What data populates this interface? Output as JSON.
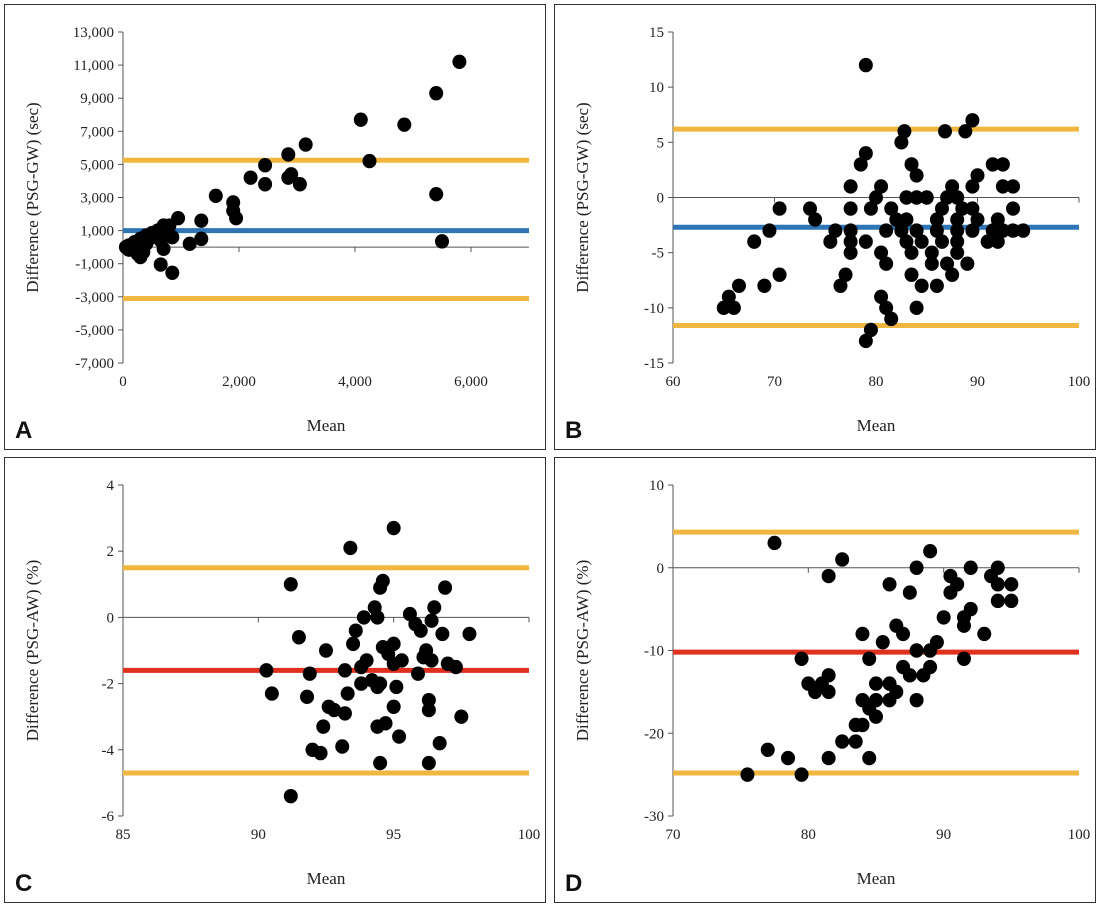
{
  "colors": {
    "limit_line": "#f0b63f",
    "mean_line_blue": "#2e75b6",
    "mean_line_red": "#e0301e",
    "point": "#000000"
  },
  "chart_data": [
    {
      "id": "A",
      "type": "scatter",
      "panel_label": "A",
      "xlabel": "Mean",
      "ylabel": "Difference (PSG-GW) (sec)",
      "xlim": [
        0,
        7000
      ],
      "ylim": [
        -7000,
        13000
      ],
      "xticks": [
        0,
        2000,
        4000,
        6000
      ],
      "xtick_labels": [
        "0",
        "2,000",
        "4,000",
        "6,000"
      ],
      "yticks": [
        -7000,
        -5000,
        -3000,
        -1000,
        1000,
        3000,
        5000,
        7000,
        9000,
        11000,
        13000
      ],
      "ytick_labels": [
        "-7,000",
        "-5,000",
        "-3,000",
        "-1,000",
        "1,000",
        "3,000",
        "5,000",
        "7,000",
        "9,000",
        "11,000",
        "13,000"
      ],
      "hlines": [
        {
          "name": "mean",
          "y": 1000,
          "color": "#2e75b6"
        },
        {
          "name": "upper_loa",
          "y": 5250,
          "color": "#f0b63f"
        },
        {
          "name": "lower_loa",
          "y": -3100,
          "color": "#f0b63f"
        }
      ],
      "points": [
        [
          5800,
          11200
        ],
        [
          5400,
          9300
        ],
        [
          4100,
          7700
        ],
        [
          4850,
          7400
        ],
        [
          3150,
          6200
        ],
        [
          2850,
          5600
        ],
        [
          4250,
          5200
        ],
        [
          2450,
          4950
        ],
        [
          2900,
          4400
        ],
        [
          2200,
          4200
        ],
        [
          2850,
          4200
        ],
        [
          3050,
          3800
        ],
        [
          2450,
          3800
        ],
        [
          1600,
          3100
        ],
        [
          5400,
          3200
        ],
        [
          1900,
          2700
        ],
        [
          1900,
          2200
        ],
        [
          1950,
          1750
        ],
        [
          1350,
          1600
        ],
        [
          950,
          1750
        ],
        [
          800,
          1300
        ],
        [
          700,
          1300
        ],
        [
          600,
          1000
        ],
        [
          750,
          800
        ],
        [
          500,
          850
        ],
        [
          400,
          700
        ],
        [
          300,
          500
        ],
        [
          200,
          300
        ],
        [
          100,
          100
        ],
        [
          50,
          0
        ],
        [
          150,
          -100
        ],
        [
          250,
          -200
        ],
        [
          350,
          -300
        ],
        [
          400,
          200
        ],
        [
          450,
          500
        ],
        [
          550,
          700
        ],
        [
          650,
          400
        ],
        [
          850,
          600
        ],
        [
          700,
          -100
        ],
        [
          1150,
          200
        ],
        [
          1350,
          500
        ],
        [
          5500,
          350
        ],
        [
          250,
          -400
        ],
        [
          300,
          -600
        ],
        [
          650,
          -1050
        ],
        [
          850,
          -1550
        ],
        [
          100,
          -150
        ],
        [
          200,
          100
        ]
      ]
    },
    {
      "id": "B",
      "type": "scatter",
      "panel_label": "B",
      "xlabel": "Mean",
      "ylabel": "Difference (PSG-GW) (sec)",
      "xlim": [
        60,
        100
      ],
      "ylim": [
        -15,
        15
      ],
      "xticks": [
        60,
        70,
        80,
        90,
        100
      ],
      "xtick_labels": [
        "60",
        "70",
        "80",
        "90",
        "100"
      ],
      "yticks": [
        -15,
        -10,
        -5,
        0,
        5,
        10,
        15
      ],
      "ytick_labels": [
        "-15",
        "-10",
        "-5",
        "0",
        "5",
        "10",
        "15"
      ],
      "hlines": [
        {
          "name": "mean",
          "y": -2.7,
          "color": "#2e75b6"
        },
        {
          "name": "upper_loa",
          "y": 6.2,
          "color": "#f0b63f"
        },
        {
          "name": "lower_loa",
          "y": -11.6,
          "color": "#f0b63f"
        }
      ],
      "points": [
        [
          79,
          12
        ],
        [
          89.5,
          7
        ],
        [
          82.8,
          6
        ],
        [
          86.8,
          6
        ],
        [
          88.8,
          6
        ],
        [
          82.5,
          5
        ],
        [
          79,
          4
        ],
        [
          83.5,
          3
        ],
        [
          78.5,
          3
        ],
        [
          91.5,
          3
        ],
        [
          92.5,
          3
        ],
        [
          84,
          2
        ],
        [
          90,
          2
        ],
        [
          77.5,
          1
        ],
        [
          80.5,
          1
        ],
        [
          87.5,
          1
        ],
        [
          89.5,
          1
        ],
        [
          92.5,
          1
        ],
        [
          93.5,
          1
        ],
        [
          80,
          0
        ],
        [
          83,
          0
        ],
        [
          84,
          0
        ],
        [
          85,
          0
        ],
        [
          87,
          0
        ],
        [
          88,
          0
        ],
        [
          70.5,
          -1
        ],
        [
          73.5,
          -1
        ],
        [
          77.5,
          -1
        ],
        [
          79.5,
          -1
        ],
        [
          81.5,
          -1
        ],
        [
          86.5,
          -1
        ],
        [
          88.5,
          -1
        ],
        [
          89.5,
          -1
        ],
        [
          93.5,
          -1
        ],
        [
          74,
          -2
        ],
        [
          82,
          -2
        ],
        [
          83,
          -2
        ],
        [
          86,
          -2
        ],
        [
          88,
          -2
        ],
        [
          90,
          -2
        ],
        [
          92,
          -2
        ],
        [
          69.5,
          -3
        ],
        [
          76,
          -3
        ],
        [
          77.5,
          -3
        ],
        [
          81,
          -3
        ],
        [
          82.5,
          -3
        ],
        [
          84,
          -3
        ],
        [
          86,
          -3
        ],
        [
          88,
          -3
        ],
        [
          89.5,
          -3
        ],
        [
          91.5,
          -3
        ],
        [
          92.5,
          -3
        ],
        [
          93.5,
          -3
        ],
        [
          94.5,
          -3
        ],
        [
          68,
          -4
        ],
        [
          75.5,
          -4
        ],
        [
          77.5,
          -4
        ],
        [
          79,
          -4
        ],
        [
          83,
          -4
        ],
        [
          84.5,
          -4
        ],
        [
          86.5,
          -4
        ],
        [
          88,
          -4
        ],
        [
          91,
          -4
        ],
        [
          92,
          -4
        ],
        [
          77.5,
          -5
        ],
        [
          80.5,
          -5
        ],
        [
          83.5,
          -5
        ],
        [
          85.5,
          -5
        ],
        [
          88,
          -5
        ],
        [
          81,
          -6
        ],
        [
          85.5,
          -6
        ],
        [
          87,
          -6
        ],
        [
          89,
          -6
        ],
        [
          70.5,
          -7
        ],
        [
          77,
          -7
        ],
        [
          83.5,
          -7
        ],
        [
          87.5,
          -7
        ],
        [
          66.5,
          -8
        ],
        [
          69,
          -8
        ],
        [
          76.5,
          -8
        ],
        [
          84.5,
          -8
        ],
        [
          86,
          -8
        ],
        [
          80.5,
          -9
        ],
        [
          65.5,
          -9
        ],
        [
          65,
          -10
        ],
        [
          66,
          -10
        ],
        [
          81,
          -10
        ],
        [
          84,
          -10
        ],
        [
          81.5,
          -11
        ],
        [
          79.5,
          -12
        ],
        [
          79,
          -13
        ]
      ]
    },
    {
      "id": "C",
      "type": "scatter",
      "panel_label": "C",
      "xlabel": "Mean",
      "ylabel": "Difference (PSG-AW) (%)",
      "xlim": [
        85,
        100
      ],
      "ylim": [
        -6,
        4
      ],
      "xticks": [
        85,
        90,
        95,
        100
      ],
      "xtick_labels": [
        "85",
        "90",
        "95",
        "100"
      ],
      "yticks": [
        -6,
        -4,
        -2,
        0,
        2,
        4
      ],
      "ytick_labels": [
        "-6",
        "-4",
        "-2",
        "0",
        "2",
        "4"
      ],
      "hlines": [
        {
          "name": "mean",
          "y": -1.6,
          "color": "#e0301e"
        },
        {
          "name": "upper_loa",
          "y": 1.5,
          "color": "#f0b63f"
        },
        {
          "name": "lower_loa",
          "y": -4.7,
          "color": "#f0b63f"
        }
      ],
      "points": [
        [
          95,
          2.7
        ],
        [
          93.4,
          2.1
        ],
        [
          94.6,
          1.1
        ],
        [
          91.2,
          1.0
        ],
        [
          94.5,
          0.9
        ],
        [
          96.9,
          0.9
        ],
        [
          94.3,
          0.3
        ],
        [
          96.5,
          0.3
        ],
        [
          95.6,
          0.1
        ],
        [
          93.9,
          0.0
        ],
        [
          94.4,
          0.0
        ],
        [
          96.4,
          -0.1
        ],
        [
          95.8,
          -0.2
        ],
        [
          93.6,
          -0.4
        ],
        [
          96,
          -0.4
        ],
        [
          96.8,
          -0.5
        ],
        [
          97.8,
          -0.5
        ],
        [
          91.5,
          -0.6
        ],
        [
          93.5,
          -0.8
        ],
        [
          95,
          -0.8
        ],
        [
          94.6,
          -0.9
        ],
        [
          96.2,
          -1.0
        ],
        [
          92.5,
          -1.0
        ],
        [
          94.8,
          -1.1
        ],
        [
          96.1,
          -1.2
        ],
        [
          95.3,
          -1.3
        ],
        [
          96.4,
          -1.3
        ],
        [
          97,
          -1.4
        ],
        [
          94,
          -1.3
        ],
        [
          95,
          -1.4
        ],
        [
          97.3,
          -1.5
        ],
        [
          93.8,
          -1.5
        ],
        [
          90.3,
          -1.6
        ],
        [
          93.2,
          -1.6
        ],
        [
          95.9,
          -1.7
        ],
        [
          91.9,
          -1.7
        ],
        [
          94.2,
          -1.9
        ],
        [
          93.8,
          -2.0
        ],
        [
          94.5,
          -2.0
        ],
        [
          95.1,
          -2.1
        ],
        [
          94.4,
          -2.1
        ],
        [
          90.5,
          -2.3
        ],
        [
          91.8,
          -2.4
        ],
        [
          93.3,
          -2.3
        ],
        [
          96.3,
          -2.5
        ],
        [
          92.6,
          -2.7
        ],
        [
          95,
          -2.7
        ],
        [
          92.8,
          -2.8
        ],
        [
          96.3,
          -2.8
        ],
        [
          93.2,
          -2.9
        ],
        [
          97.5,
          -3.0
        ],
        [
          94.7,
          -3.2
        ],
        [
          94.4,
          -3.3
        ],
        [
          92.4,
          -3.3
        ],
        [
          95.2,
          -3.6
        ],
        [
          96.7,
          -3.8
        ],
        [
          93.1,
          -3.9
        ],
        [
          92,
          -4.0
        ],
        [
          92.3,
          -4.1
        ],
        [
          94.5,
          -4.4
        ],
        [
          96.3,
          -4.4
        ],
        [
          91.2,
          -5.4
        ]
      ]
    },
    {
      "id": "D",
      "type": "scatter",
      "panel_label": "D",
      "xlabel": "Mean",
      "ylabel": "Difference (PSG-AW) (%)",
      "xlim": [
        70,
        100
      ],
      "ylim": [
        -30,
        10
      ],
      "xticks": [
        70,
        80,
        90,
        100
      ],
      "xtick_labels": [
        "70",
        "80",
        "90",
        "100"
      ],
      "yticks": [
        -30,
        -20,
        -10,
        0,
        10
      ],
      "ytick_labels": [
        "-30",
        "-20",
        "-10",
        "0",
        "10"
      ],
      "hlines": [
        {
          "name": "mean",
          "y": -10.2,
          "color": "#e0301e"
        },
        {
          "name": "upper_loa",
          "y": 4.3,
          "color": "#f0b63f"
        },
        {
          "name": "lower_loa",
          "y": -24.8,
          "color": "#f0b63f"
        }
      ],
      "points": [
        [
          77.5,
          3
        ],
        [
          82.5,
          1
        ],
        [
          89,
          2
        ],
        [
          92,
          0
        ],
        [
          94,
          0
        ],
        [
          88,
          0
        ],
        [
          81.5,
          -1
        ],
        [
          90.5,
          -1
        ],
        [
          93.5,
          -1
        ],
        [
          91,
          -2
        ],
        [
          86,
          -2
        ],
        [
          94,
          -2
        ],
        [
          95,
          -2
        ],
        [
          87.5,
          -3
        ],
        [
          90.5,
          -3
        ],
        [
          92,
          -5
        ],
        [
          90,
          -6
        ],
        [
          91.5,
          -6
        ],
        [
          94,
          -4
        ],
        [
          95,
          -4
        ],
        [
          91.5,
          -7
        ],
        [
          86.5,
          -7
        ],
        [
          87,
          -8
        ],
        [
          93,
          -8
        ],
        [
          84,
          -8
        ],
        [
          85.5,
          -9
        ],
        [
          89.5,
          -9
        ],
        [
          88,
          -10
        ],
        [
          89,
          -10
        ],
        [
          79.5,
          -11
        ],
        [
          84.5,
          -11
        ],
        [
          91.5,
          -11
        ],
        [
          87.5,
          -13
        ],
        [
          81.5,
          -13
        ],
        [
          89,
          -12
        ],
        [
          87,
          -12
        ],
        [
          88.5,
          -13
        ],
        [
          81,
          -14
        ],
        [
          80,
          -14
        ],
        [
          80.5,
          -15
        ],
        [
          81.5,
          -15
        ],
        [
          85,
          -14
        ],
        [
          86,
          -14
        ],
        [
          85,
          -16
        ],
        [
          86.5,
          -15
        ],
        [
          84,
          -16
        ],
        [
          86,
          -16
        ],
        [
          88,
          -16
        ],
        [
          84.5,
          -17
        ],
        [
          85,
          -18
        ],
        [
          83.5,
          -19
        ],
        [
          84,
          -19
        ],
        [
          82.5,
          -21
        ],
        [
          83.5,
          -21
        ],
        [
          81.5,
          -23
        ],
        [
          84.5,
          -23
        ],
        [
          77,
          -22
        ],
        [
          78.5,
          -23
        ],
        [
          75.5,
          -25
        ],
        [
          79.5,
          -25
        ]
      ]
    }
  ]
}
